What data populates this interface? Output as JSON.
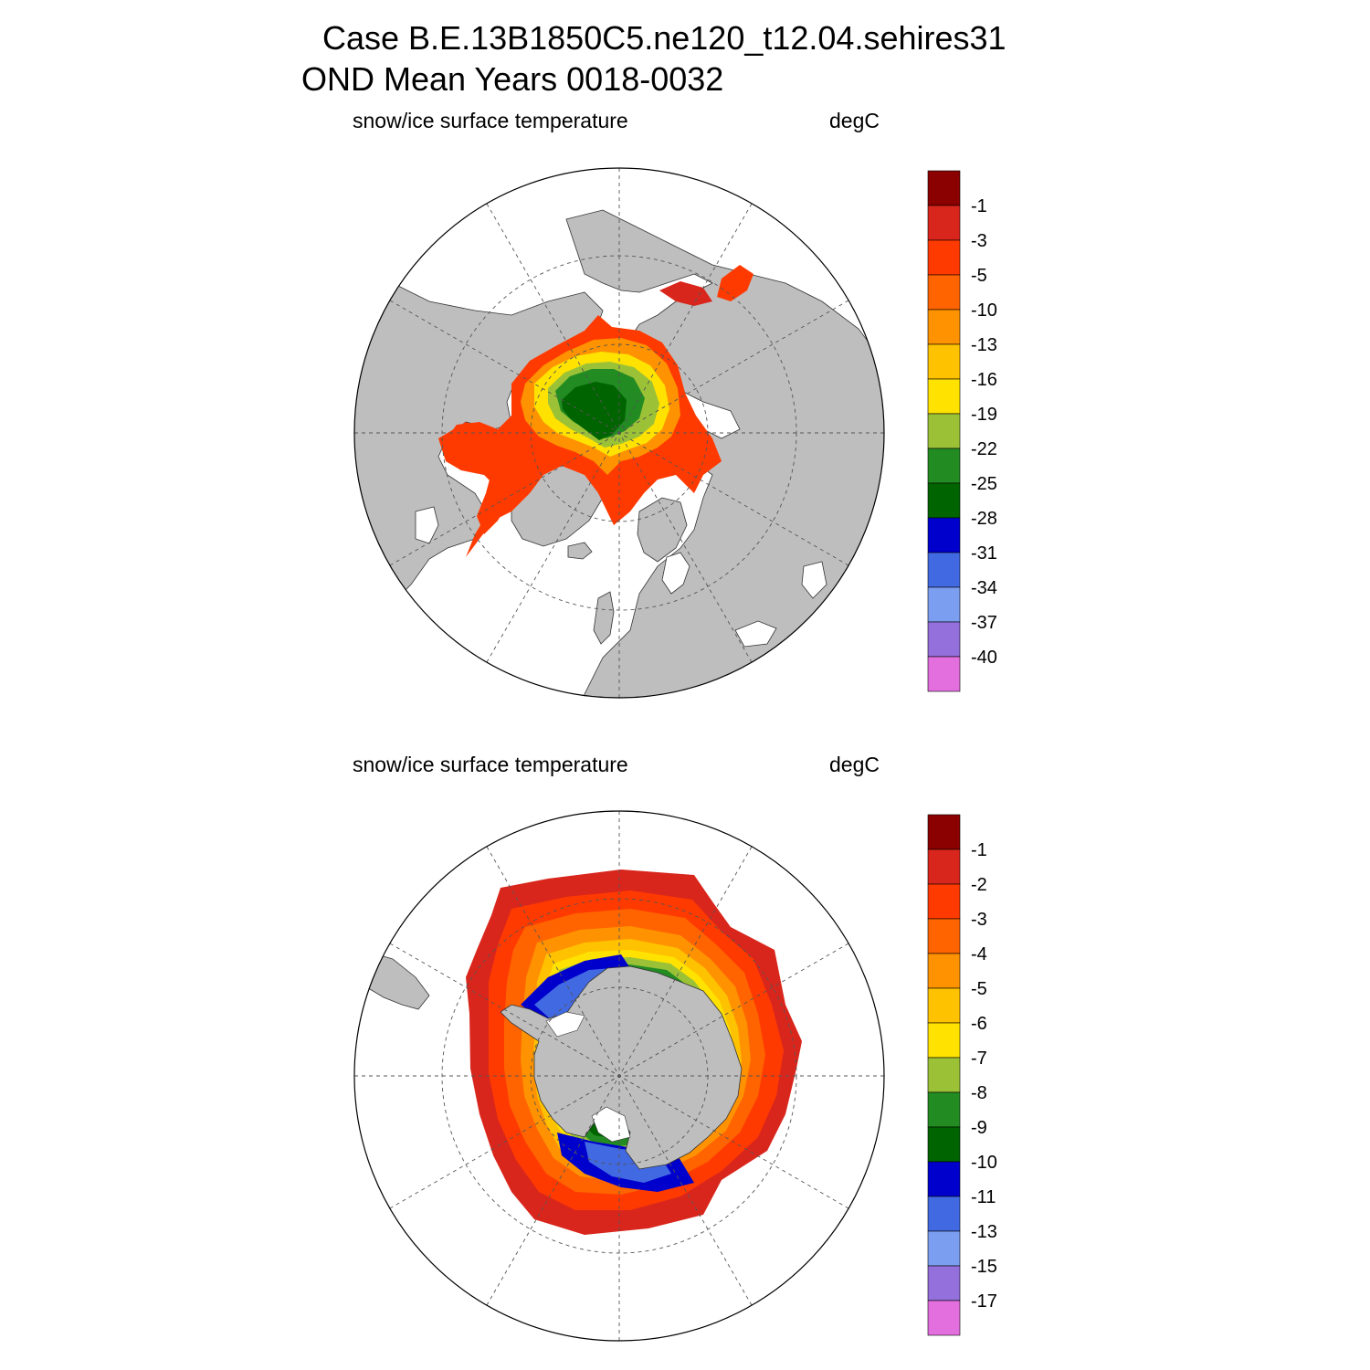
{
  "header": {
    "title_line1": "Case B.E.13B1850C5.ne120_t12.04.sehires31",
    "title_line2": "OND Mean   Years 0018-0032"
  },
  "panels": [
    {
      "id": "north",
      "left_label": "snow/ice surface temperature",
      "right_label": "degC",
      "colorbar": {
        "colors": [
          "#8b0000",
          "#d9261c",
          "#ff3a00",
          "#ff6400",
          "#ff9200",
          "#ffc200",
          "#ffe200",
          "#9bc236",
          "#228b22",
          "#006400",
          "#0000cd",
          "#4169e1",
          "#7b9ef0",
          "#9370db",
          "#e36fdf"
        ],
        "labels": [
          "-1",
          "-3",
          "-5",
          "-10",
          "-13",
          "-16",
          "-19",
          "-22",
          "-25",
          "-28",
          "-31",
          "-34",
          "-37",
          "-40"
        ]
      }
    },
    {
      "id": "south",
      "left_label": "snow/ice surface temperature",
      "right_label": "degC",
      "colorbar": {
        "colors": [
          "#8b0000",
          "#d9261c",
          "#ff3a00",
          "#ff6400",
          "#ff9200",
          "#ffc200",
          "#ffe200",
          "#9bc236",
          "#228b22",
          "#006400",
          "#0000cd",
          "#4169e1",
          "#7b9ef0",
          "#9370db",
          "#e36fdf"
        ],
        "labels": [
          "-1",
          "-2",
          "-3",
          "-4",
          "-5",
          "-6",
          "-7",
          "-8",
          "-9",
          "-10",
          "-11",
          "-13",
          "-15",
          "-17"
        ]
      }
    }
  ],
  "colors": {
    "land": "#bebebe",
    "ocean": "#ffffff",
    "grid": "#555555"
  }
}
